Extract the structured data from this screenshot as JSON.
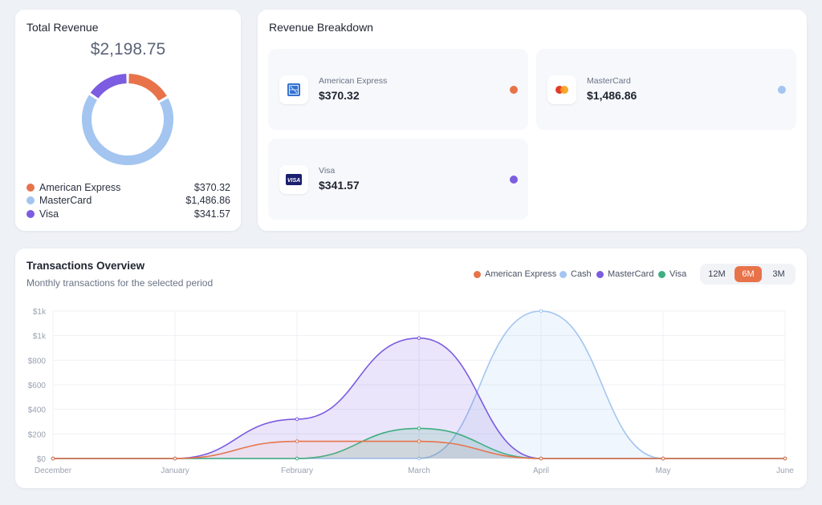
{
  "total_revenue": {
    "title": "Total Revenue",
    "amount": "$2,198.75",
    "legend": [
      {
        "name": "American Express",
        "value": "$370.32",
        "color": "#e8734a"
      },
      {
        "name": "MasterCard",
        "value": "$1,486.86",
        "color": "#a3c5f0"
      },
      {
        "name": "Visa",
        "value": "$341.57",
        "color": "#7c5ce0"
      }
    ]
  },
  "breakdown": {
    "title": "Revenue Breakdown",
    "tiles": [
      {
        "name": "American Express",
        "value": "$370.32",
        "color": "#e8734a",
        "icon": "amex-card-icon"
      },
      {
        "name": "MasterCard",
        "value": "$1,486.86",
        "color": "#a3c5f0",
        "icon": "mastercard-icon"
      },
      {
        "name": "Visa",
        "value": "$341.57",
        "color": "#7c5ce0",
        "icon": "visa-card-icon",
        "icon_text": "VISA"
      }
    ]
  },
  "transactions": {
    "title": "Transactions Overview",
    "subtitle": "Monthly transactions for the selected period",
    "legend": [
      {
        "name": "American Express",
        "color": "#e8734a"
      },
      {
        "name": "Cash",
        "color": "#a3c5f0"
      },
      {
        "name": "MasterCard",
        "color": "#7c5ce0"
      },
      {
        "name": "Visa",
        "color": "#3fae82"
      }
    ],
    "ranges": [
      "12M",
      "6M",
      "3M"
    ],
    "active_range": "6M"
  },
  "chart_data": {
    "type": "area",
    "categories": [
      "December",
      "January",
      "February",
      "March",
      "April",
      "May",
      "June"
    ],
    "y_tick_labels": [
      "$0",
      "$200",
      "$400",
      "$600",
      "$800",
      "$1k",
      "$1k"
    ],
    "ylim": [
      0,
      1200
    ],
    "grid": true,
    "series": [
      {
        "name": "American Express",
        "color": "#e8734a",
        "values": [
          0,
          0,
          140,
          140,
          0,
          0,
          0
        ]
      },
      {
        "name": "Cash",
        "color": "#a3c5f0",
        "values": [
          0,
          0,
          0,
          0,
          1200,
          0,
          0
        ]
      },
      {
        "name": "MasterCard",
        "color": "#7c5ce0",
        "values": [
          0,
          0,
          320,
          980,
          0,
          0,
          0
        ]
      },
      {
        "name": "Visa",
        "color": "#3fae82",
        "values": [
          0,
          0,
          0,
          245,
          0,
          0,
          0
        ]
      }
    ]
  }
}
